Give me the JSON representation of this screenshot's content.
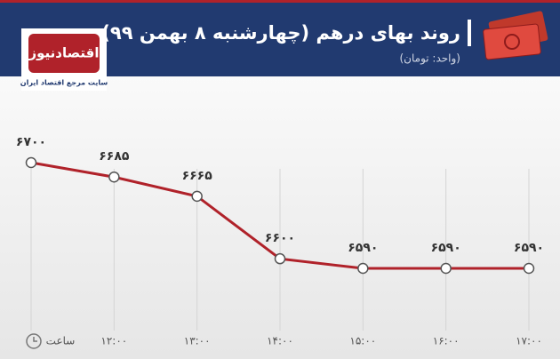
{
  "header": {
    "title": "روند بهای درهم (چهارشنبه ۸ بهمن ۹۹)",
    "subtitle": "(واحد: تومان)",
    "logo": "اقتصادنیوز",
    "tagline": "سایت مرجع اقتصاد ایران"
  },
  "chart_data": {
    "type": "line",
    "x_label": "ساعت",
    "categories": [
      null,
      "۱۲:۰۰",
      "۱۳:۰۰",
      "۱۴:۰۰",
      "۱۵:۰۰",
      "۱۶:۰۰",
      "۱۷:۰۰"
    ],
    "series": [
      {
        "color": "#b0222a",
        "values": [
          6700,
          6685,
          6665,
          6600,
          6590,
          6590,
          6590
        ],
        "value_labels": [
          "۶۷۰۰",
          "۶۶۸۵",
          "۶۶۶۵",
          "۶۶۰۰",
          "۶۵۹۰",
          "۶۵۹۰",
          "۶۵۹۰"
        ]
      }
    ],
    "grid": true
  }
}
